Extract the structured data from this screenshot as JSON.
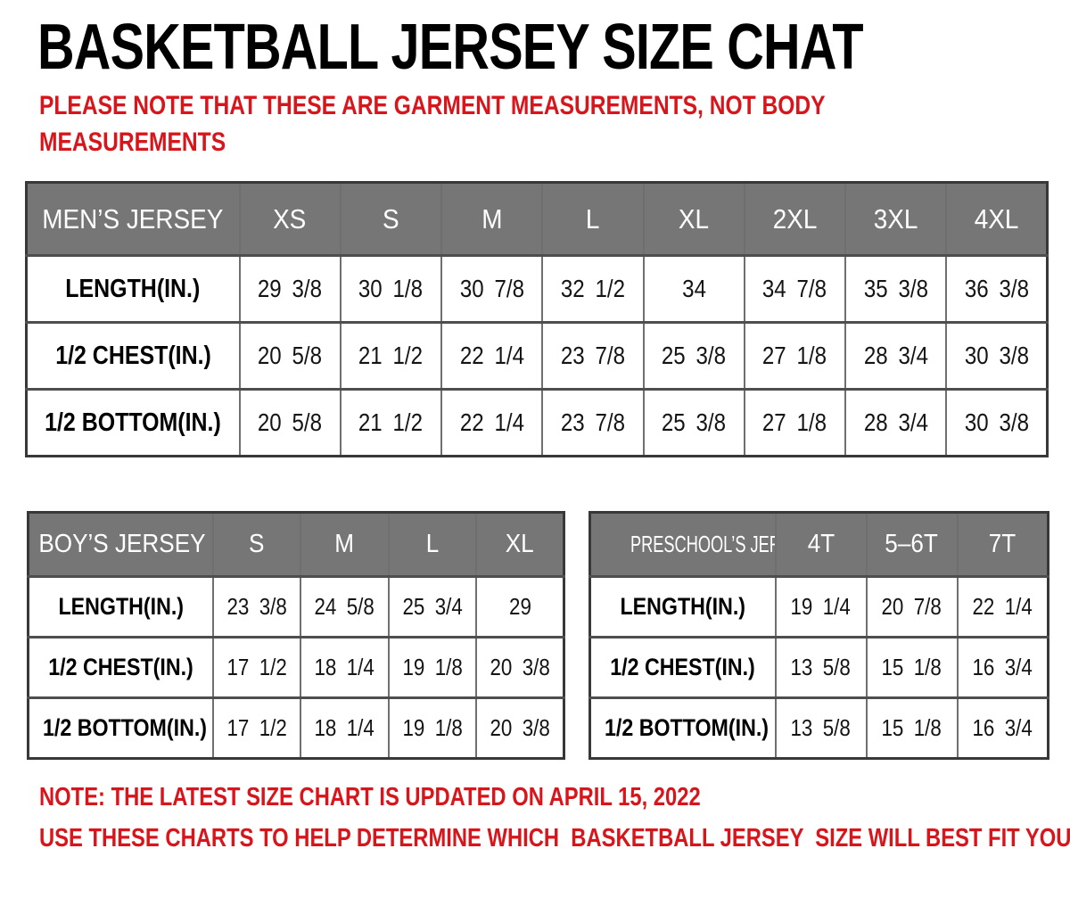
{
  "page": {
    "title": "BASKETBALL JERSEY SIZE CHAT",
    "subtitle": "PLEASE NOTE THAT THESE ARE GARMENT MEASUREMENTS, NOT BODY MEASUREMENTS",
    "footnote_update": "NOTE: THE LATEST SIZE CHART IS UPDATED ON APRIL 15, 2022",
    "footnote_usage": "USE THESE CHARTS TO HELP DETERMINE WHICH  BASKETBALL JERSEY  SIZE WILL BEST FIT YOU.",
    "colors": {
      "accent_red": "#d9151c",
      "header_gray": "#767676"
    }
  },
  "tables": {
    "mens": {
      "title": "MEN’S JERSEY",
      "columns": [
        "XS",
        "S",
        "M",
        "L",
        "XL",
        "2XL",
        "3XL",
        "4XL"
      ],
      "rows": [
        {
          "label": "LENGTH(IN.)",
          "values": [
            "29 3/8",
            "30 1/8",
            "30 7/8",
            "32 1/2",
            "34",
            "34 7/8",
            "35 3/8",
            "36 3/8"
          ]
        },
        {
          "label": "1/2 CHEST(IN.)",
          "values": [
            "20 5/8",
            "21 1/2",
            "22 1/4",
            "23 7/8",
            "25 3/8",
            "27 1/8",
            "28 3/4",
            "30 3/8"
          ]
        },
        {
          "label": "1/2 BOTTOM(IN.)",
          "values": [
            "20 5/8",
            "21 1/2",
            "22 1/4",
            "23 7/8",
            "25 3/8",
            "27 1/8",
            "28 3/4",
            "30 3/8"
          ]
        }
      ]
    },
    "boys": {
      "title": "BOY’S JERSEY",
      "columns": [
        "S",
        "M",
        "L",
        "XL"
      ],
      "rows": [
        {
          "label": "LENGTH(IN.)",
          "values": [
            "23 3/8",
            "24 5/8",
            "25 3/4",
            "29"
          ]
        },
        {
          "label": "1/2 CHEST(IN.)",
          "values": [
            "17 1/2",
            "18 1/4",
            "19 1/8",
            "20 3/8"
          ]
        },
        {
          "label": "1/2 BOTTOM(IN.)",
          "values": [
            "17 1/2",
            "18 1/4",
            "19 1/8",
            "20 3/8"
          ]
        }
      ]
    },
    "preschool": {
      "title": "PRESCHOOL’S JERSEY",
      "columns": [
        "4T",
        "5–6T",
        "7T"
      ],
      "rows": [
        {
          "label": "LENGTH(IN.)",
          "values": [
            "19 1/4",
            "20 7/8",
            "22 1/4"
          ]
        },
        {
          "label": "1/2 CHEST(IN.)",
          "values": [
            "13 5/8",
            "15 1/8",
            "16 3/4"
          ]
        },
        {
          "label": "1/2 BOTTOM(IN.)",
          "values": [
            "13 5/8",
            "15 1/8",
            "16 3/4"
          ]
        }
      ]
    }
  }
}
